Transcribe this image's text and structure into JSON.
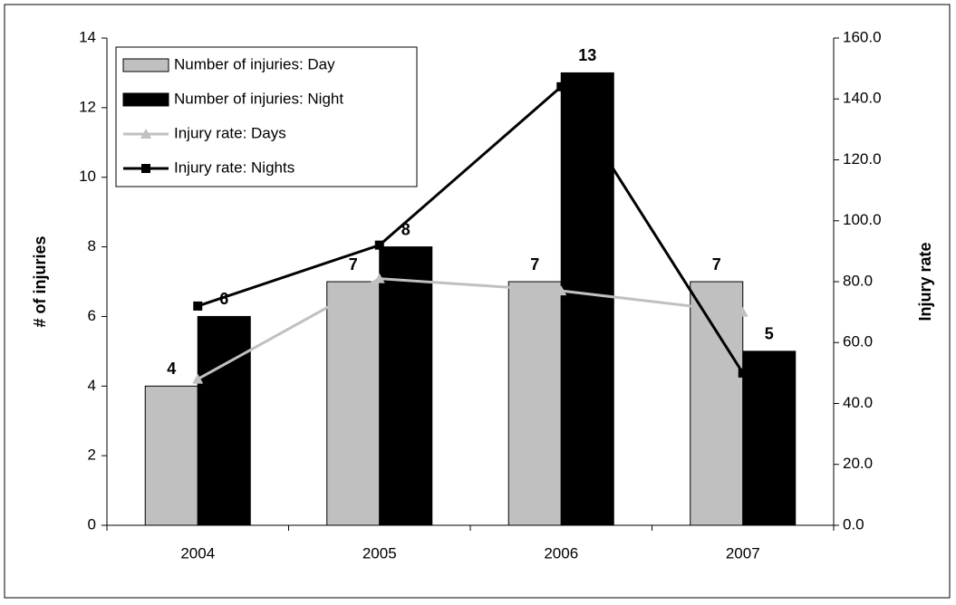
{
  "chart_data": {
    "type": "bar-line",
    "categories": [
      "2004",
      "2005",
      "2006",
      "2007"
    ],
    "series": [
      {
        "name": "Number of injuries: Day",
        "type": "bar",
        "color": "#c0c0c0",
        "values": [
          4,
          7,
          7,
          7
        ]
      },
      {
        "name": "Number of injuries: Night",
        "type": "bar",
        "color": "#000000",
        "values": [
          6,
          8,
          13,
          5
        ]
      },
      {
        "name": "Injury rate: Days",
        "type": "line",
        "marker": "triangle",
        "axis": "y2",
        "color": "#c0c0c0",
        "values": [
          48,
          81,
          77,
          70
        ]
      },
      {
        "name": "Injury rate: Nights",
        "type": "line",
        "marker": "square",
        "axis": "y2",
        "color": "#000000",
        "values": [
          72,
          92,
          144,
          50
        ]
      }
    ],
    "ylabel": "# of injuries",
    "y2label": "Injury rate",
    "ylim": [
      0,
      14
    ],
    "yticks": [
      0,
      2,
      4,
      6,
      8,
      10,
      12,
      14
    ],
    "y2lim": [
      0,
      160
    ],
    "y2ticks": [
      {
        "value": 0,
        "label": "0.0"
      },
      {
        "value": 20,
        "label": "20.0"
      },
      {
        "value": 40,
        "label": "40.0"
      },
      {
        "value": 60,
        "label": "60.0"
      },
      {
        "value": 80,
        "label": "80.0"
      },
      {
        "value": 100,
        "label": "100.0"
      },
      {
        "value": 120,
        "label": "120.0"
      },
      {
        "value": 140,
        "label": "140.0"
      },
      {
        "value": 160,
        "label": "160.0"
      }
    ],
    "legend": "upper left"
  }
}
